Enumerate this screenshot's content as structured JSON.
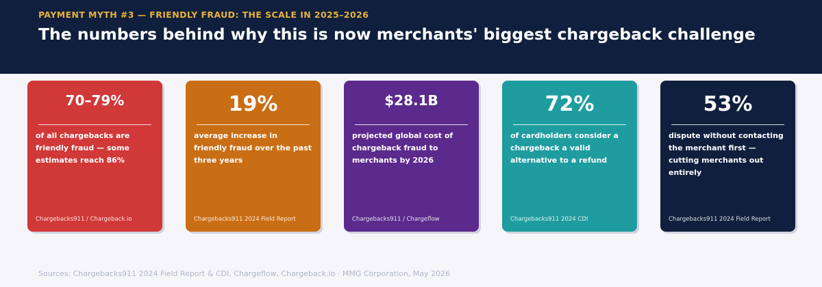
{
  "header": {
    "kicker": "PAYMENT MYTH #3 — FRIENDLY FRAUD: THE SCALE IN 2025–2026",
    "title": "The numbers behind why this is now merchants' biggest chargeback challenge"
  },
  "cards": [
    {
      "stat": "70–79%",
      "description": "of all chargebacks are friendly fraud — some estimates reach 86%",
      "source": "Chargebacks911 / Chargeback.io"
    },
    {
      "stat": "19%",
      "description": "average increase in friendly fraud over the past three years",
      "source": "Chargebacks911 2024 Field Report"
    },
    {
      "stat": "$28.1B",
      "description": "projected global cost of chargeback fraud to merchants by 2026",
      "source": "Chargebacks911 / Chargeflow"
    },
    {
      "stat": "72%",
      "description": "of cardholders consider a chargeback a valid alternative to a refund",
      "source": "Chargebacks911 2024 CDI"
    },
    {
      "stat": "53%",
      "description": "dispute without contacting the merchant first — cutting merchants out entirely",
      "source": "Chargebacks911 2024 Field Report"
    }
  ],
  "footer": "Sources: Chargebacks911 2024 Field Report & CDI, Chargeflow, Chargeback.io  ·  MMG Corporation, May 2026"
}
